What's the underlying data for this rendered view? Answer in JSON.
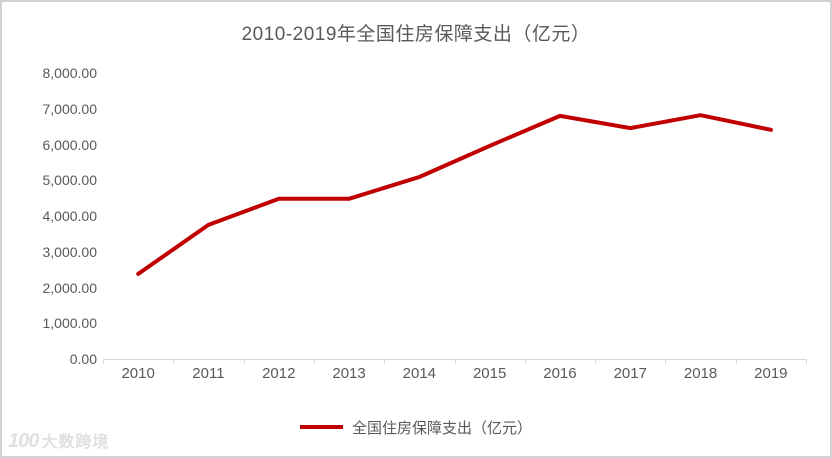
{
  "chart_data": {
    "type": "line",
    "title": "2010-2019年全国住房保障支出（亿元）",
    "categories": [
      "2010",
      "2011",
      "2012",
      "2013",
      "2014",
      "2015",
      "2016",
      "2017",
      "2018",
      "2019"
    ],
    "series": [
      {
        "name": "全国住房保障支出（亿元）",
        "values": [
          2380,
          3750,
          4480,
          4480,
          5090,
          5960,
          6800,
          6460,
          6820,
          6410
        ],
        "color": "#c00000"
      }
    ],
    "xlabel": "",
    "ylabel": "",
    "ylim": [
      0,
      8000
    ],
    "y_tick_step": 1000,
    "y_tick_labels": [
      "0.00",
      "1,000.00",
      "2,000.00",
      "3,000.00",
      "4,000.00",
      "5,000.00",
      "6,000.00",
      "7,000.00",
      "8,000.00"
    ],
    "grid": false,
    "legend_position": "bottom"
  },
  "legend": {
    "items": [
      {
        "label": "全国住房保障支出（亿元）",
        "color": "#c00000"
      }
    ]
  },
  "watermark": {
    "logo": "100",
    "text": "大数跨境"
  },
  "colors": {
    "line": "#c00000",
    "text": "#595959",
    "axis": "#d9d9d9",
    "frame_border": "#d3d3d3",
    "watermark": "#e0e0e0"
  }
}
